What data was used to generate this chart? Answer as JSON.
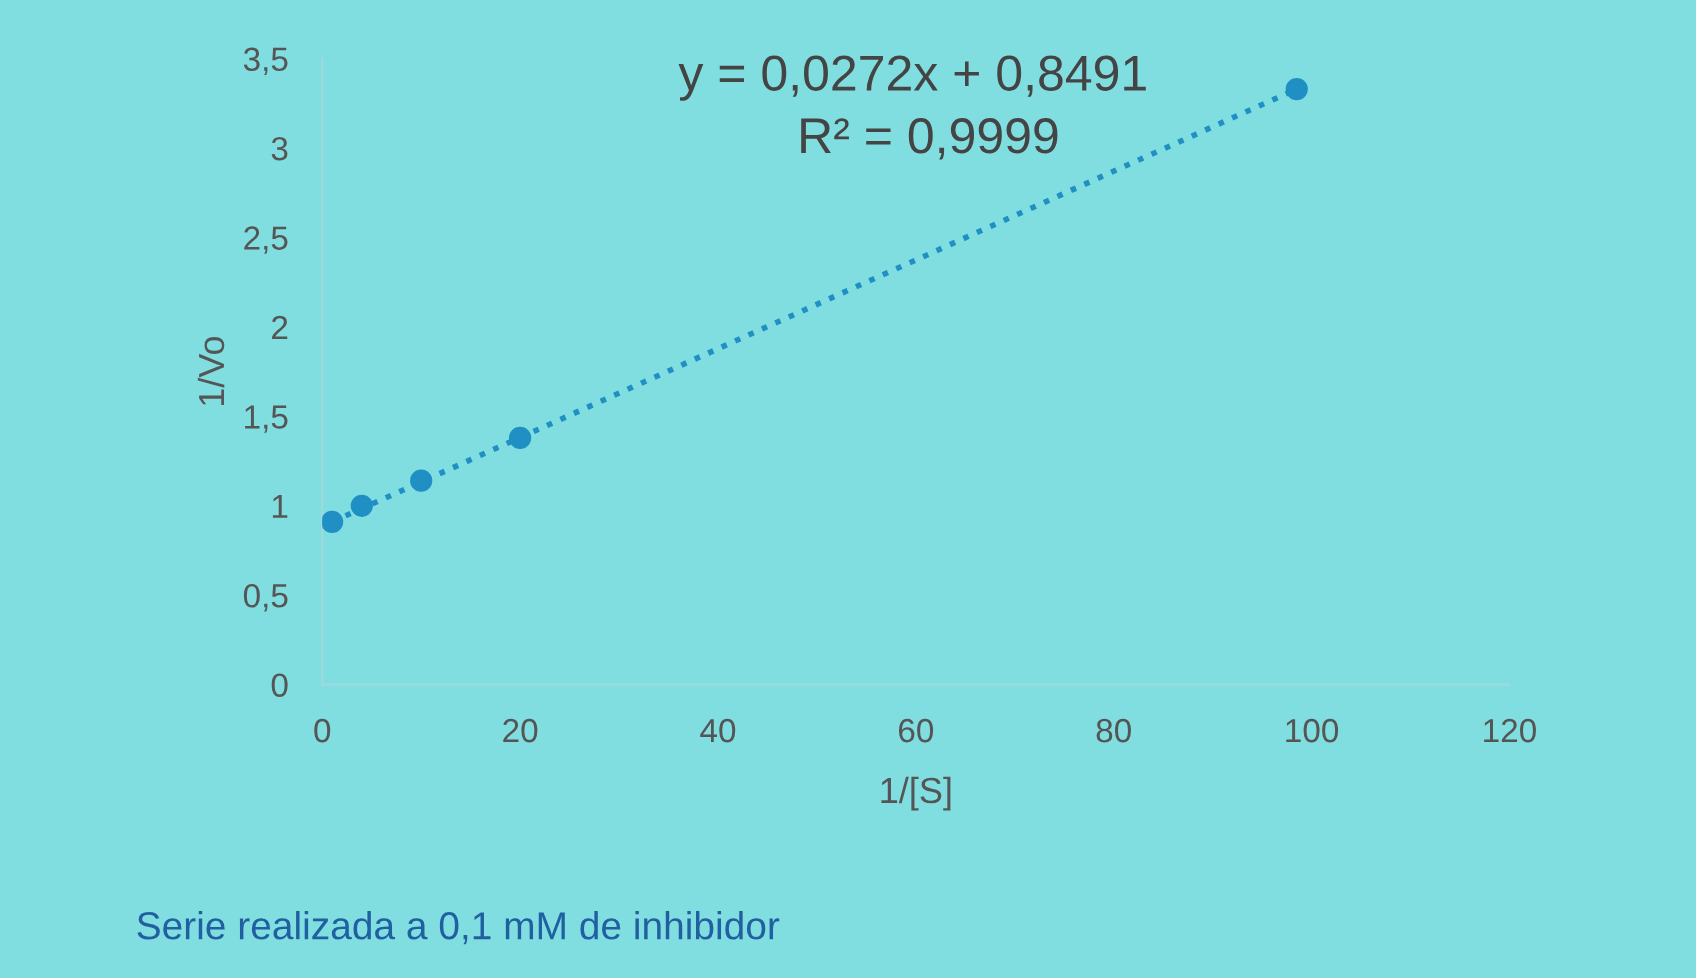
{
  "chart_data": {
    "type": "scatter",
    "xlabel": "1/[S]",
    "ylabel": "1/Vo",
    "series": [
      {
        "color": "#1f8fc4",
        "marker": "circle",
        "x": [
          1,
          4,
          10,
          20,
          98.5
        ],
        "values": [
          0.91,
          1.0,
          1.14,
          1.38,
          3.33
        ]
      },
      {
        "type": "line",
        "color": "#1f8fc4",
        "line_style": "dotted",
        "marker": "none",
        "x": [
          1,
          98.5
        ],
        "values": [
          0.91,
          3.33
        ]
      }
    ],
    "xlim": [
      0,
      120
    ],
    "xticks": [
      0,
      20,
      40,
      60,
      80,
      100,
      120
    ],
    "ylim": [
      0,
      3.5
    ],
    "yticks": [
      0,
      {
        "value": 0.5,
        "label": "0,5"
      },
      1,
      {
        "value": 1.5,
        "label": "1,5"
      },
      2,
      {
        "value": 2.5,
        "label": "2,5"
      },
      3,
      {
        "value": 3.5,
        "label": "3,5"
      }
    ],
    "grid": false,
    "legend": false,
    "annotations": [
      "y = 0,0272x + 0,8491",
      "R² = 0,9999",
      "Serie realizada a 0,1 mM de inhibidor"
    ]
  }
}
